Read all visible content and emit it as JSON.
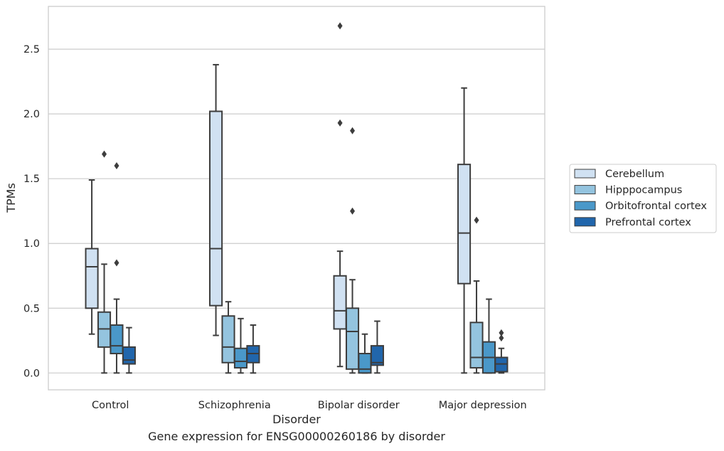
{
  "caption": "Gene expression for ENSG00000260186 by disorder",
  "chart_data": {
    "type": "box",
    "title": "",
    "xlabel": "Disorder",
    "ylabel": "TPMs",
    "categories": [
      "Control",
      "Schizophrenia",
      "Bipolar disorder",
      "Major depression"
    ],
    "yticks": [
      "0.0",
      "0.5",
      "1.0",
      "1.5",
      "2.0",
      "2.5"
    ],
    "ylim": [
      -0.13,
      2.83
    ],
    "grid": "horizontal",
    "legend_position": "right",
    "series": [
      {
        "name": "Cerebellum",
        "color": "#d0e1f2",
        "boxes": [
          {
            "whislo": 0.3,
            "q1": 0.5,
            "med": 0.82,
            "q3": 0.96,
            "whishi": 1.49,
            "fliers": []
          },
          {
            "whislo": 0.29,
            "q1": 0.52,
            "med": 0.96,
            "q3": 2.02,
            "whishi": 2.38,
            "fliers": []
          },
          {
            "whislo": 0.05,
            "q1": 0.34,
            "med": 0.48,
            "q3": 0.75,
            "whishi": 0.94,
            "fliers": [
              1.93,
              2.68
            ]
          },
          {
            "whislo": 0.0,
            "q1": 0.69,
            "med": 1.08,
            "q3": 1.61,
            "whishi": 2.2,
            "fliers": []
          }
        ]
      },
      {
        "name": "Hipppocampus",
        "color": "#94c4df",
        "boxes": [
          {
            "whislo": 0.0,
            "q1": 0.2,
            "med": 0.34,
            "q3": 0.47,
            "whishi": 0.84,
            "fliers": [
              1.69
            ]
          },
          {
            "whislo": 0.0,
            "q1": 0.08,
            "med": 0.2,
            "q3": 0.44,
            "whishi": 0.55,
            "fliers": []
          },
          {
            "whislo": 0.0,
            "q1": 0.03,
            "med": 0.32,
            "q3": 0.5,
            "whishi": 0.72,
            "fliers": [
              1.25,
              1.87
            ]
          },
          {
            "whislo": 0.0,
            "q1": 0.04,
            "med": 0.12,
            "q3": 0.39,
            "whishi": 0.71,
            "fliers": [
              1.18
            ]
          }
        ]
      },
      {
        "name": "Orbitofrontal cortex",
        "color": "#4a98c9",
        "boxes": [
          {
            "whislo": 0.0,
            "q1": 0.15,
            "med": 0.21,
            "q3": 0.37,
            "whishi": 0.57,
            "fliers": [
              0.85,
              1.6
            ]
          },
          {
            "whislo": 0.0,
            "q1": 0.04,
            "med": 0.09,
            "q3": 0.19,
            "whishi": 0.42,
            "fliers": []
          },
          {
            "whislo": 0.0,
            "q1": 0.0,
            "med": 0.03,
            "q3": 0.15,
            "whishi": 0.3,
            "fliers": []
          },
          {
            "whislo": 0.0,
            "q1": 0.0,
            "med": 0.12,
            "q3": 0.24,
            "whishi": 0.57,
            "fliers": []
          }
        ]
      },
      {
        "name": "Prefrontal cortex",
        "color": "#2166ac",
        "boxes": [
          {
            "whislo": 0.0,
            "q1": 0.07,
            "med": 0.1,
            "q3": 0.2,
            "whishi": 0.35,
            "fliers": []
          },
          {
            "whislo": 0.0,
            "q1": 0.08,
            "med": 0.15,
            "q3": 0.21,
            "whishi": 0.37,
            "fliers": []
          },
          {
            "whislo": 0.0,
            "q1": 0.06,
            "med": 0.08,
            "q3": 0.21,
            "whishi": 0.4,
            "fliers": []
          },
          {
            "whislo": 0.0,
            "q1": 0.01,
            "med": 0.07,
            "q3": 0.12,
            "whishi": 0.19,
            "fliers": [
              0.27,
              0.31
            ]
          }
        ]
      }
    ]
  }
}
